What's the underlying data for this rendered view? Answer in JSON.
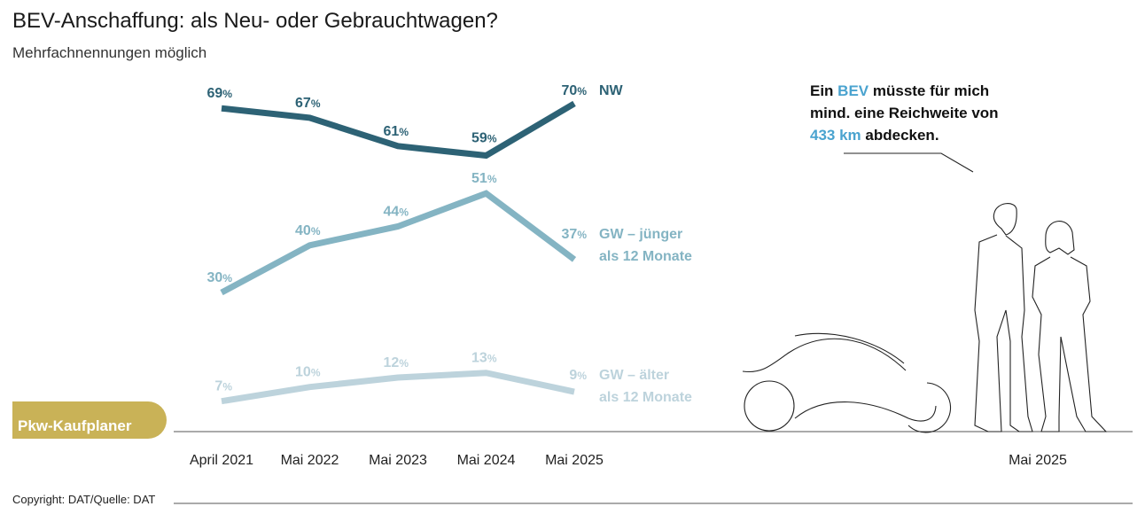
{
  "title": "BEV-Anschaffung: als Neu- oder Gebrauchtwagen?",
  "subtitle": "Mehrfachnennungen möglich",
  "badge": "Pkw-Kaufplaner",
  "quote": {
    "part1": "Ein ",
    "hl1": "BEV",
    "part2": " müsste für mich mind. eine Reichweite von ",
    "hl2": "433 km",
    "part3": " abdecken."
  },
  "illustration_date": "Mai 2025",
  "copyright": "Copyright: DAT/Quelle: DAT",
  "colors": {
    "nw": "#2d6275",
    "gw_young": "#84b4c3",
    "gw_old": "#bdd3dc",
    "badge": "#c9b257",
    "highlight": "#4aa3cf"
  },
  "chart_data": {
    "type": "line",
    "categories": [
      "April 2021",
      "Mai 2022",
      "Mai 2023",
      "Mai 2024",
      "Mai 2025"
    ],
    "unit": "%",
    "series": [
      {
        "name": "NW",
        "values": [
          69,
          67,
          61,
          59,
          70
        ],
        "color": "#2d6275"
      },
      {
        "name": "GW – jünger als 12 Monate",
        "name_lines": [
          "GW – jünger",
          "als 12 Monate"
        ],
        "values": [
          30,
          40,
          44,
          51,
          37
        ],
        "color": "#84b4c3"
      },
      {
        "name": "GW – älter als 12 Monate",
        "name_lines": [
          "GW – älter",
          "als 12 Monate"
        ],
        "values": [
          7,
          10,
          12,
          13,
          9
        ],
        "color": "#bdd3dc"
      }
    ],
    "ylim": [
      0,
      75
    ],
    "grid": false,
    "legend": "right, inline at line ends"
  }
}
